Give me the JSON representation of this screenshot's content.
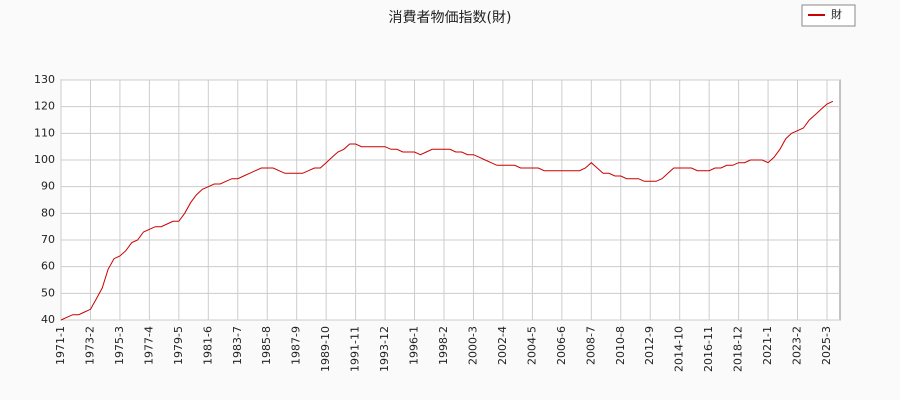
{
  "chart_data": {
    "type": "line",
    "title": "消費者物価指数(財)",
    "categories": [
      "1971-1",
      null,
      null,
      null,
      null,
      "1973-2",
      null,
      null,
      null,
      null,
      "1975-3",
      null,
      null,
      null,
      null,
      "1977-4",
      null,
      null,
      null,
      null,
      "1979-5",
      null,
      null,
      null,
      null,
      "1981-6",
      null,
      null,
      null,
      null,
      "1983-7",
      null,
      null,
      null,
      null,
      "1985-8",
      null,
      null,
      null,
      null,
      "1987-9",
      null,
      null,
      null,
      null,
      "1989-10",
      null,
      null,
      null,
      null,
      "1991-11",
      null,
      null,
      null,
      null,
      "1993-12",
      null,
      null,
      null,
      null,
      "1996-1",
      null,
      null,
      null,
      null,
      "1998-2",
      null,
      null,
      null,
      null,
      "2000-3",
      null,
      null,
      null,
      null,
      "2002-4",
      null,
      null,
      null,
      null,
      "2004-5",
      null,
      null,
      null,
      null,
      "2006-6",
      null,
      null,
      null,
      null,
      "2008-7",
      null,
      null,
      null,
      null,
      "2010-8",
      null,
      null,
      null,
      null,
      "2012-9",
      null,
      null,
      null,
      null,
      "2014-10",
      null,
      null,
      null,
      null,
      "2016-11",
      null,
      null,
      null,
      null,
      "2018-12",
      null,
      null,
      null,
      null,
      "2021-1",
      null,
      null,
      null,
      null,
      "2023-2",
      null,
      null,
      null,
      null,
      "2025-3",
      null
    ],
    "series": [
      {
        "name": "財",
        "color": "#cc0000",
        "values": [
          40,
          41,
          42,
          42,
          43,
          44,
          48,
          52,
          59,
          63,
          64,
          66,
          69,
          70,
          73,
          74,
          75,
          75,
          76,
          77,
          77,
          80,
          84,
          87,
          89,
          90,
          91,
          91,
          92,
          93,
          93,
          94,
          95,
          96,
          97,
          97,
          97,
          96,
          95,
          95,
          95,
          95,
          96,
          97,
          97,
          99,
          101,
          103,
          104,
          106,
          106,
          105,
          105,
          105,
          105,
          105,
          104,
          104,
          103,
          103,
          103,
          102,
          103,
          104,
          104,
          104,
          104,
          103,
          103,
          102,
          102,
          101,
          100,
          99,
          98,
          98,
          98,
          98,
          97,
          97,
          97,
          97,
          96,
          96,
          96,
          96,
          96,
          96,
          96,
          97,
          99,
          97,
          95,
          95,
          94,
          94,
          93,
          93,
          93,
          92,
          92,
          92,
          93,
          95,
          97,
          97,
          97,
          97,
          96,
          96,
          96,
          97,
          97,
          98,
          98,
          99,
          99,
          100,
          100,
          100,
          99,
          101,
          104,
          108,
          110,
          111,
          112,
          115,
          117,
          119,
          121,
          122
        ]
      }
    ],
    "ylim": [
      40,
      130
    ],
    "yticks": [
      40,
      50,
      60,
      70,
      80,
      90,
      100,
      110,
      120,
      130
    ],
    "grid": true,
    "legend": "upper right"
  }
}
